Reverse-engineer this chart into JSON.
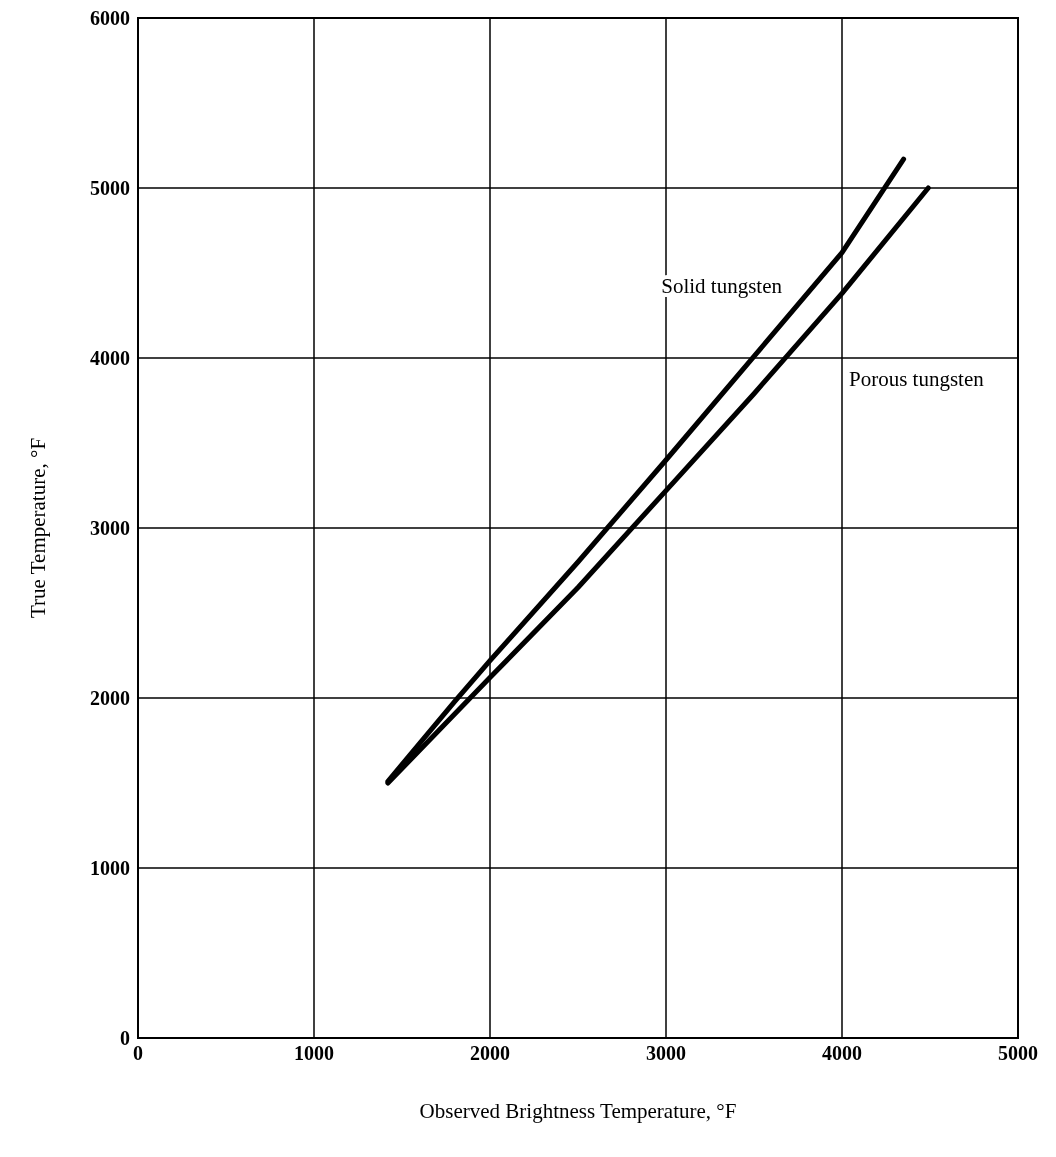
{
  "chart_data": {
    "type": "line",
    "xlabel": "Observed Brightness Temperature, °F",
    "ylabel": "True Temperature, °F",
    "xlim": [
      0,
      5000
    ],
    "xticks": [
      0,
      1000,
      2000,
      3000,
      4000,
      5000
    ],
    "ylim": [
      0,
      6000
    ],
    "yticks": [
      0,
      1000,
      2000,
      3000,
      4000,
      5000,
      6000
    ],
    "grid": true,
    "legend": false,
    "marker": "none",
    "line_style": "solid",
    "series": [
      {
        "name": "Solid tungsten",
        "color": "#000000",
        "x": [
          1420,
          1800,
          2000,
          2500,
          3000,
          3500,
          4000,
          4350
        ],
        "values": [
          1510,
          1980,
          2220,
          2800,
          3400,
          4010,
          4620,
          5170
        ]
      },
      {
        "name": "Porous tungsten",
        "color": "#000000",
        "x": [
          1420,
          2000,
          2500,
          3000,
          3500,
          4000,
          4490
        ],
        "values": [
          1500,
          2120,
          2650,
          3220,
          3790,
          4380,
          5000
        ]
      }
    ]
  }
}
